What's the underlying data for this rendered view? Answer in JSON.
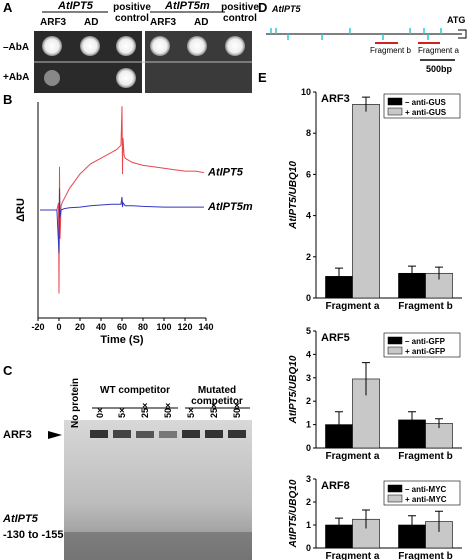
{
  "panel_labels": [
    "A",
    "B",
    "C",
    "D",
    "E"
  ],
  "panel_a": {
    "constructs": [
      "AtIPT5",
      "AtIPT5m"
    ],
    "columns": [
      "ARF3",
      "AD",
      "positive control"
    ],
    "rows": [
      "–AbA",
      "+AbA"
    ]
  },
  "panel_c": {
    "lanes_header": [
      "No protein",
      "WT competitor",
      "Mutated competitor"
    ],
    "lanes": [
      "0×",
      "5×",
      "25×",
      "50×",
      "5×",
      "25×",
      "50×"
    ],
    "band": "ARF3",
    "probe": "AtIPT5",
    "probe_region": "-130 to -155"
  },
  "panel_d": {
    "gene": "AtIPT5",
    "start": "ATG",
    "fragments": [
      "Fragment b",
      "Fragment a"
    ],
    "scale": "500bp"
  },
  "chart_data": [
    {
      "type": "line",
      "xlabel": "Time (S)",
      "ylabel": "ΔRU",
      "xlim": [
        -20,
        140
      ],
      "xticks": [
        -20,
        0,
        20,
        40,
        60,
        80,
        100,
        120,
        140
      ],
      "ylim": [
        -75,
        75
      ],
      "series": [
        {
          "name": "AtIPT5",
          "color": "#e8474b",
          "x": [
            -18,
            -10,
            -2,
            -0.5,
            0,
            0.5,
            1,
            2,
            3,
            5,
            10,
            15,
            20,
            30,
            40,
            50,
            55,
            59,
            60,
            60.5,
            61,
            62,
            63,
            65,
            70,
            80,
            90,
            100,
            110,
            120,
            130,
            138
          ],
          "values": [
            0,
            0,
            0,
            5,
            -58,
            30,
            -20,
            3,
            5,
            8,
            15,
            20,
            25,
            32,
            36,
            40,
            42,
            45,
            72,
            25,
            50,
            38,
            36,
            35,
            33,
            31,
            30,
            29,
            28,
            27,
            27,
            26
          ]
        },
        {
          "name": "AtIPT5m",
          "color": "#3535c0",
          "x": [
            -18,
            -10,
            -2,
            0,
            0.5,
            1,
            2,
            5,
            10,
            20,
            30,
            40,
            50,
            59,
            60,
            60.5,
            61,
            63,
            70,
            80,
            100,
            120,
            138
          ],
          "values": [
            0,
            0,
            0,
            -30,
            15,
            -5,
            0,
            1,
            1.5,
            2,
            3,
            3.5,
            4,
            4,
            9,
            2,
            5,
            3,
            3,
            2.5,
            2,
            2,
            2
          ]
        }
      ]
    },
    {
      "type": "bar",
      "title": "ARF3",
      "ylabel": "AtIPT5/UBQ10",
      "categories": [
        "Fragment a",
        "Fragment b"
      ],
      "ylim": [
        0,
        10
      ],
      "yticks": [
        0,
        2,
        4,
        6,
        8,
        10
      ],
      "legend": "upper right",
      "series": [
        {
          "name": "– anti-GUS",
          "color": "#000000",
          "values": [
            1.05,
            1.2
          ],
          "errors": [
            0.4,
            0.35
          ]
        },
        {
          "name": "+ anti-GUS",
          "color": "#c8c8c8",
          "values": [
            9.4,
            1.2
          ],
          "errors": [
            0.35,
            0.3
          ]
        }
      ]
    },
    {
      "type": "bar",
      "title": "ARF5",
      "ylabel": "AtIPT5/UBQ10",
      "categories": [
        "Fragment a",
        "Fragment b"
      ],
      "ylim": [
        0,
        5
      ],
      "yticks": [
        0,
        1,
        2,
        3,
        4,
        5
      ],
      "legend": "upper right",
      "series": [
        {
          "name": "– anti-GFP",
          "color": "#000000",
          "values": [
            1.0,
            1.2
          ],
          "errors": [
            0.55,
            0.35
          ]
        },
        {
          "name": "+ anti-GFP",
          "color": "#c8c8c8",
          "values": [
            2.95,
            1.05
          ],
          "errors": [
            0.7,
            0.2
          ]
        }
      ]
    },
    {
      "type": "bar",
      "title": "ARF8",
      "ylabel": "AtIPT5/UBQ10",
      "categories": [
        "Fragment a",
        "Fragment b"
      ],
      "ylim": [
        0,
        3
      ],
      "yticks": [
        0,
        1,
        2,
        3
      ],
      "legend": "upper right",
      "series": [
        {
          "name": "– anti-MYC",
          "color": "#000000",
          "values": [
            1.0,
            1.0
          ],
          "errors": [
            0.3,
            0.4
          ]
        },
        {
          "name": "+ anti-MYC",
          "color": "#c8c8c8",
          "values": [
            1.25,
            1.15
          ],
          "errors": [
            0.4,
            0.45
          ]
        }
      ]
    }
  ]
}
